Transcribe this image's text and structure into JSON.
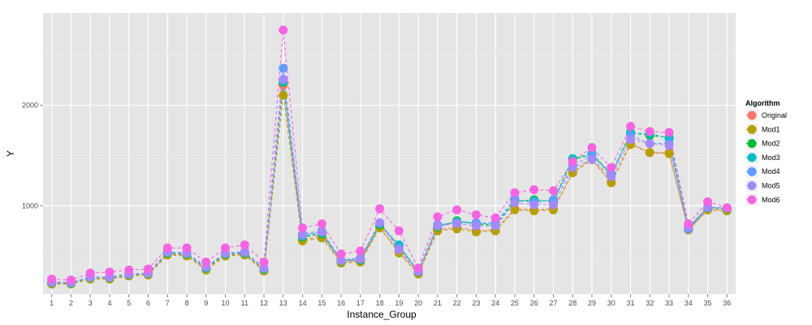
{
  "chart_data": {
    "type": "line",
    "title": "",
    "xlabel": "Instance_Group",
    "ylabel": "Y",
    "x": [
      1,
      2,
      3,
      4,
      5,
      6,
      7,
      8,
      9,
      10,
      11,
      12,
      13,
      14,
      15,
      16,
      17,
      18,
      19,
      20,
      21,
      22,
      23,
      24,
      25,
      26,
      27,
      28,
      29,
      30,
      31,
      32,
      33,
      34,
      35,
      36
    ],
    "xlim": [
      0.55,
      36.45
    ],
    "ylim": [
      120,
      2920
    ],
    "y_ticks": [
      1000,
      2000
    ],
    "grid": true,
    "line_style": "dashed",
    "marker": "circle",
    "legend": {
      "title": "Algorithm",
      "position": "right"
    },
    "series": [
      {
        "name": "Original",
        "color": "#F8766D",
        "values": [
          230,
          225,
          280,
          280,
          310,
          320,
          520,
          510,
          370,
          510,
          520,
          360,
          2200,
          660,
          700,
          440,
          450,
          790,
          540,
          330,
          760,
          790,
          750,
          760,
          970,
          960,
          970,
          1330,
          1470,
          1240,
          1620,
          1530,
          1530,
          760,
          960,
          960
        ]
      },
      {
        "name": "Mod1",
        "color": "#B79F00",
        "values": [
          220,
          220,
          270,
          270,
          300,
          310,
          510,
          500,
          360,
          500,
          510,
          350,
          2100,
          650,
          680,
          430,
          440,
          780,
          530,
          320,
          750,
          770,
          740,
          750,
          960,
          950,
          960,
          1330,
          1460,
          1230,
          1610,
          1530,
          1520,
          760,
          960,
          950
        ]
      },
      {
        "name": "Mod2",
        "color": "#00BA38",
        "values": [
          235,
          230,
          285,
          285,
          315,
          325,
          530,
          520,
          380,
          520,
          530,
          370,
          2230,
          690,
          720,
          450,
          460,
          810,
          600,
          340,
          790,
          850,
          820,
          800,
          1040,
          1060,
          1040,
          1460,
          1510,
          1310,
          1730,
          1700,
          1680,
          780,
          980,
          970
        ]
      },
      {
        "name": "Mod3",
        "color": "#00BFC4",
        "values": [
          235,
          230,
          285,
          285,
          315,
          325,
          530,
          520,
          380,
          520,
          530,
          370,
          2240,
          700,
          730,
          455,
          465,
          820,
          610,
          345,
          800,
          840,
          830,
          810,
          1050,
          1050,
          1050,
          1470,
          1520,
          1320,
          1720,
          1720,
          1670,
          770,
          980,
          975
        ]
      },
      {
        "name": "Mod4",
        "color": "#619CFF",
        "values": [
          240,
          235,
          290,
          290,
          320,
          330,
          540,
          530,
          390,
          530,
          540,
          380,
          2370,
          720,
          750,
          460,
          480,
          830,
          580,
          350,
          810,
          830,
          830,
          830,
          1070,
          1030,
          1060,
          1400,
          1500,
          1310,
          1700,
          1620,
          1620,
          770,
          980,
          980
        ]
      },
      {
        "name": "Mod5",
        "color": "#A58AFF",
        "values": [
          240,
          235,
          290,
          290,
          320,
          330,
          540,
          530,
          390,
          530,
          540,
          380,
          2260,
          710,
          740,
          455,
          470,
          830,
          560,
          345,
          800,
          820,
          800,
          800,
          1030,
          1010,
          1010,
          1380,
          1460,
          1290,
          1660,
          1620,
          1600,
          790,
          990,
          975
        ]
      },
      {
        "name": "Mod6",
        "color": "#F564E3",
        "values": [
          270,
          260,
          330,
          340,
          360,
          370,
          580,
          580,
          440,
          580,
          610,
          440,
          2750,
          780,
          820,
          520,
          550,
          970,
          750,
          380,
          890,
          960,
          910,
          880,
          1130,
          1160,
          1150,
          1440,
          1580,
          1380,
          1790,
          1740,
          1730,
          820,
          1040,
          980
        ]
      }
    ]
  }
}
